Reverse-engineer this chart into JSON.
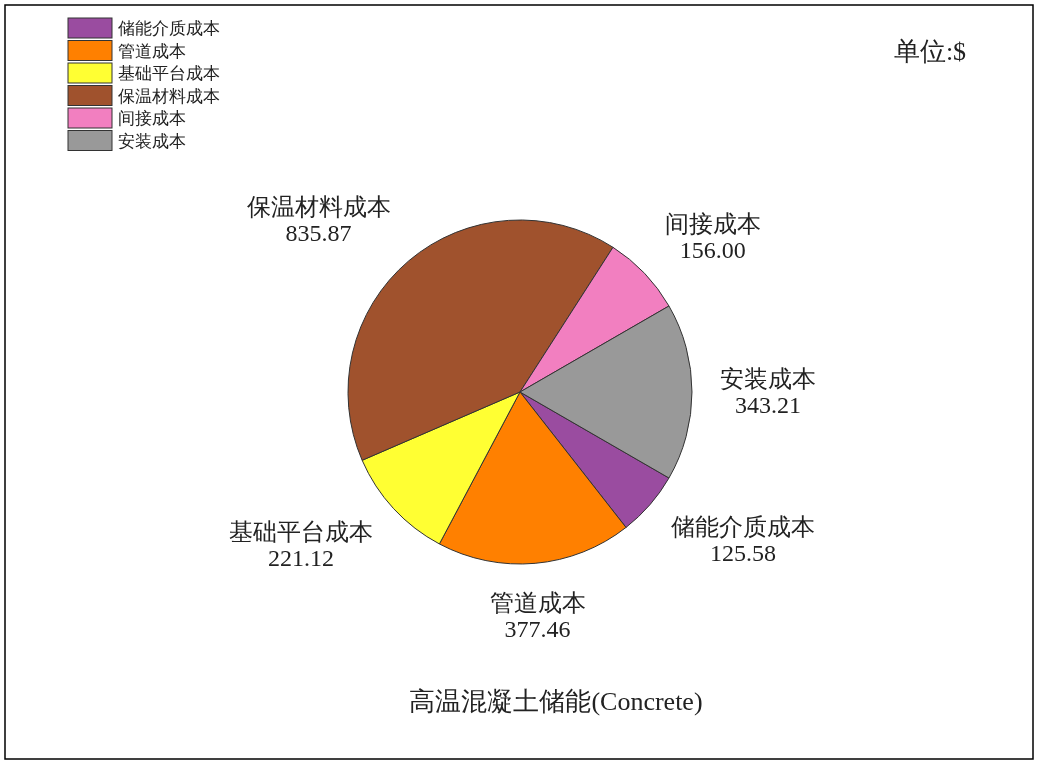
{
  "chart_data": {
    "type": "pie",
    "title": "高温混凝土储能(Concrete)",
    "categories": [
      "储能介质成本",
      "管道成本",
      "基础平台成本",
      "保温材料成本",
      "间接成本",
      "安装成本"
    ],
    "values": [
      125.58,
      377.46,
      221.12,
      835.87,
      156.0,
      343.21
    ],
    "colors": [
      "#9a4ca0",
      "#ff8000",
      "#ffff33",
      "#a0522d",
      "#f27fc0",
      "#999999"
    ],
    "value_labels": [
      "125.58",
      "377.46",
      "221.12",
      "835.87",
      "156.00",
      "343.21"
    ],
    "legend": "top left",
    "annotations": [
      "单位:$"
    ]
  }
}
